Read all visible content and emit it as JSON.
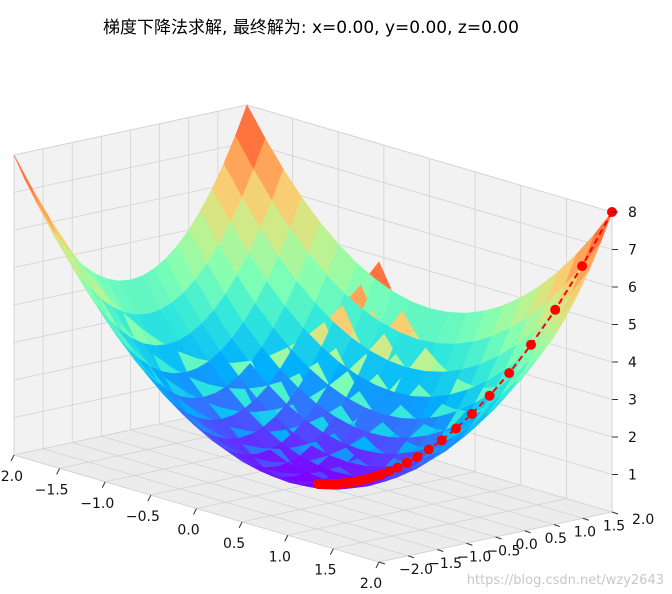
{
  "title": "梯度下降法求解, 最终解为: x=0.00, y=0.00, z=0.00",
  "watermark": "https://blog.csdn.net/wzy2643",
  "colors": {
    "background": "#ffffff",
    "pane": "#f2f2f2",
    "grid": "#d2d2d2",
    "path": "#ff0000",
    "surface_colormap": "rainbow"
  },
  "chart_data": {
    "type": "surface3d",
    "function": "z = x^2 + y^2",
    "x_ticks": [
      "−2.0",
      "−1.5",
      "−1.0",
      "−0.5",
      "0.0",
      "0.5",
      "1.0",
      "1.5",
      "2.0"
    ],
    "y_ticks": [
      "−2.0",
      "−1.5",
      "−1.0",
      "−0.5",
      "0.0",
      "0.5",
      "1.0",
      "1.5",
      "2.0"
    ],
    "z_ticks": [
      "1",
      "2",
      "3",
      "4",
      "5",
      "6",
      "7",
      "8"
    ],
    "xlim": [
      -2,
      2
    ],
    "ylim": [
      -2,
      2
    ],
    "zlim": [
      0,
      8
    ],
    "grid": true,
    "surface_grid": 20,
    "descent_path": {
      "style": "red dashed line with circle markers",
      "x": [
        2.0,
        1.8,
        1.62,
        1.458,
        1.3122,
        1.181,
        1.0629,
        0.9566,
        0.8609,
        0.7748,
        0.6974,
        0.6276,
        0.5649,
        0.5084,
        0.4575,
        0.4118,
        0.3706,
        0.3335,
        0.3002,
        0.2702,
        0.2432,
        0.2188,
        0.197,
        0.1773,
        0.1595,
        0.1436,
        0.1292,
        0.1163,
        0.1047,
        0.0942,
        0.0848,
        0.0763,
        0.0687,
        0.0618,
        0.0556,
        0.0501,
        0.0451,
        0.0406,
        0.0365,
        0.0328
      ],
      "y": [
        2.0,
        1.8,
        1.62,
        1.458,
        1.3122,
        1.181,
        1.0629,
        0.9566,
        0.8609,
        0.7748,
        0.6974,
        0.6276,
        0.5649,
        0.5084,
        0.4575,
        0.4118,
        0.3706,
        0.3335,
        0.3002,
        0.2702,
        0.2432,
        0.2188,
        0.197,
        0.1773,
        0.1595,
        0.1436,
        0.1292,
        0.1163,
        0.1047,
        0.0942,
        0.0848,
        0.0763,
        0.0687,
        0.0618,
        0.0556,
        0.0501,
        0.0451,
        0.0406,
        0.0365,
        0.0328
      ],
      "final": {
        "x": 0.0,
        "y": 0.0,
        "z": 0.0
      }
    }
  }
}
